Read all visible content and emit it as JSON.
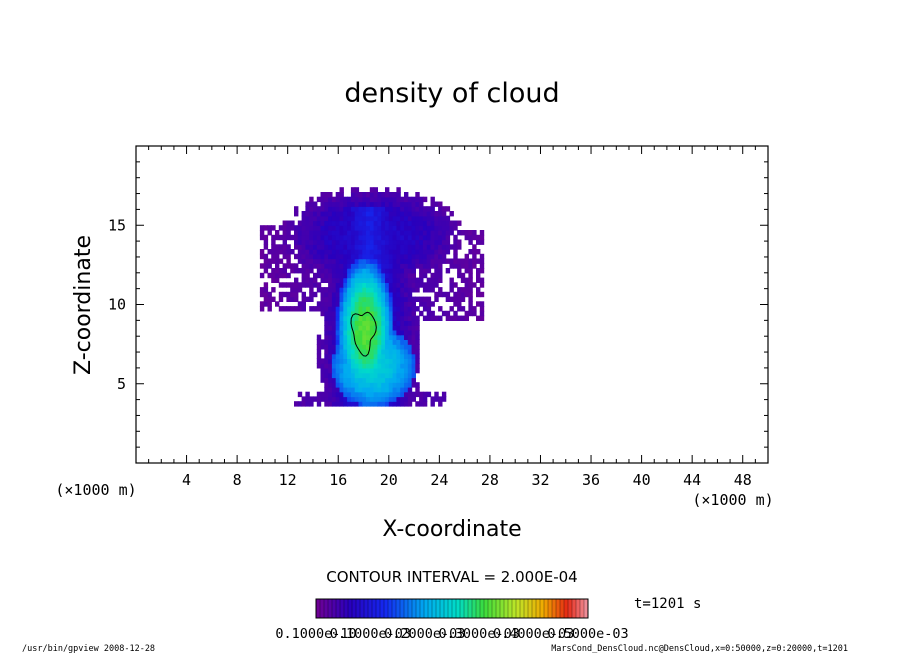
{
  "chart_data": {
    "type": "heatmap",
    "title": "density of cloud",
    "xlabel": "X-coordinate",
    "ylabel": "Z-coordinate",
    "x_unit": "(×1000 m)",
    "y_unit": "(×1000 m)",
    "xlim": [
      0,
      50
    ],
    "ylim": [
      0,
      20
    ],
    "xticks": [
      "4",
      "8",
      "12",
      "16",
      "20",
      "24",
      "28",
      "32",
      "36",
      "40",
      "44",
      "48"
    ],
    "yticks": [
      "5",
      "10",
      "15"
    ],
    "contour_interval": "CONTOUR INTERVAL = 2.000E-04",
    "time": "t=1201 s",
    "colorbar_labels": [
      "0.1000e-10",
      "0.1000e-03",
      "0.2000e-03",
      "0.3000e-03",
      "0.4000e-03",
      "0.5000e-03"
    ],
    "footer_left": "/usr/bin/gpview   2008-12-28",
    "footer_right": "MarsCond_DensCloud.nc@DensCloud,x=0:50000,z=0:20000,t=1201",
    "cloud": {
      "cap_center_x": 18.5,
      "cap_top_z": 17.3,
      "body_x_range": [
        15.0,
        21.5
      ],
      "body_z_range": [
        3.5,
        16.0
      ],
      "left_arm": {
        "x": [
          9.8,
          13.5
        ],
        "z": [
          9.5,
          14.8
        ]
      },
      "right_arm": {
        "x": [
          23.5,
          27.5
        ],
        "z": [
          9.0,
          14.5
        ]
      },
      "core": {
        "x": 18.0,
        "z": 8.3
      },
      "base_z": 3.5,
      "peak_density": 0.00032
    }
  }
}
